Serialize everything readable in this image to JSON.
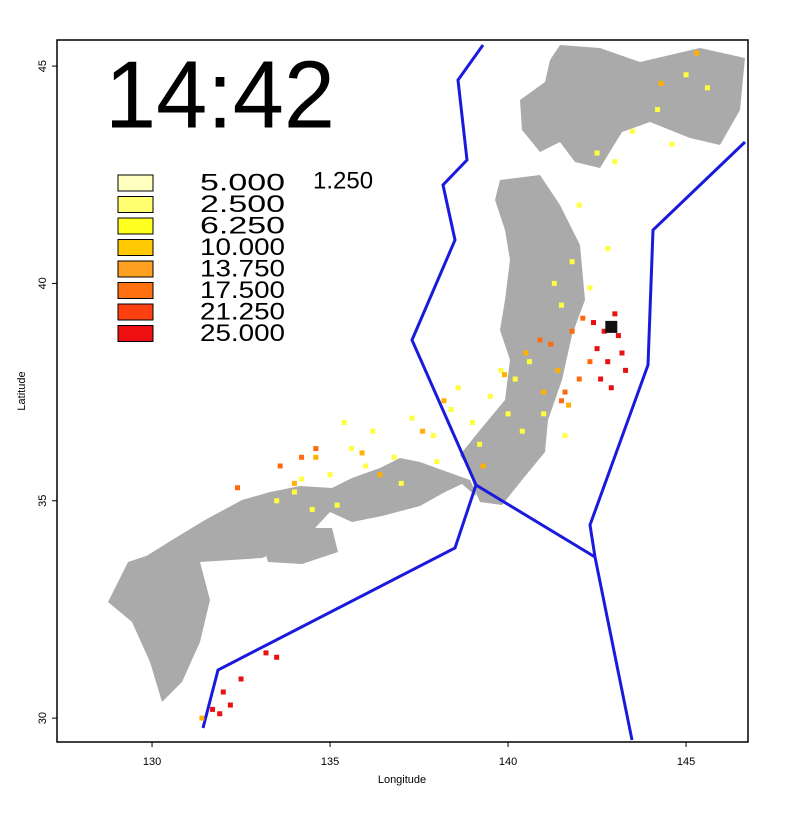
{
  "chart_data": {
    "type": "scatter",
    "title": "14:42",
    "xlabel": "Longitude",
    "ylabel": "Latitude",
    "xlim": [
      127.33,
      146.74
    ],
    "ylim": [
      29.45,
      45.6
    ],
    "xticks": [
      130,
      135,
      140,
      145
    ],
    "yticks": [
      30,
      35,
      40,
      45
    ],
    "legend_note": "1.250",
    "legend": [
      {
        "label": "5.000",
        "color": "#ffffc0"
      },
      {
        "label": "2.500",
        "color": "#ffff70"
      },
      {
        "label": "6.250",
        "color": "#ffff20"
      },
      {
        "label": "10.000",
        "color": "#ffc800"
      },
      {
        "label": "13.750",
        "color": "#ffa020"
      },
      {
        "label": "17.500",
        "color": "#ff7010"
      },
      {
        "label": "21.250",
        "color": "#ff4010"
      },
      {
        "label": "25.000",
        "color": "#ee1010"
      }
    ],
    "series": [
      {
        "color": "#ffff40",
        "x": [
          134.0,
          134.5,
          135.0,
          135.6,
          136.2,
          136.8,
          137.3,
          137.9,
          138.4,
          139.0,
          139.5,
          140.0,
          140.4,
          133.5,
          134.2,
          135.2,
          136.0,
          137.0,
          138.0,
          139.2,
          140.2,
          141.0,
          141.5,
          141.8,
          142.0,
          141.3,
          142.5,
          143.5,
          144.2,
          145.0,
          145.6,
          143.0,
          144.6,
          142.3,
          142.8,
          141.6,
          140.6,
          139.8,
          138.6,
          135.4
        ],
        "values": [
          35.2,
          34.8,
          35.6,
          36.2,
          36.6,
          36.0,
          36.9,
          36.5,
          37.1,
          36.8,
          37.4,
          37.0,
          36.6,
          35.0,
          35.5,
          34.9,
          35.8,
          35.4,
          35.9,
          36.3,
          37.8,
          37.0,
          39.5,
          40.5,
          41.8,
          40.0,
          43.0,
          43.5,
          44.0,
          44.8,
          44.5,
          42.8,
          43.2,
          39.9,
          40.8,
          36.5,
          38.2,
          38.0,
          37.6,
          36.8
        ]
      },
      {
        "color": "#ffb000",
        "x": [
          135.9,
          136.4,
          137.6,
          138.2,
          139.3,
          139.9,
          140.5,
          141.0,
          141.4,
          141.7,
          144.3,
          145.3,
          134.0,
          134.6,
          131.4
        ],
        "values": [
          36.1,
          35.6,
          36.6,
          37.3,
          35.8,
          37.9,
          38.4,
          37.5,
          38.0,
          37.2,
          44.6,
          45.3,
          35.4,
          36.0,
          30.0
        ]
      },
      {
        "color": "#ff6a10",
        "x": [
          141.2,
          141.6,
          142.0,
          141.8,
          142.3,
          141.5,
          134.2,
          134.6,
          133.6,
          132.4,
          140.9,
          142.1
        ],
        "values": [
          38.6,
          37.5,
          37.8,
          38.9,
          38.2,
          37.3,
          36.0,
          36.2,
          35.8,
          35.3,
          38.7,
          39.2
        ]
      },
      {
        "color": "#e81010",
        "x": [
          142.5,
          142.8,
          143.1,
          143.3,
          142.6,
          142.9,
          143.0,
          142.4,
          142.7,
          143.2,
          131.9,
          132.2,
          132.5,
          133.2,
          133.5,
          131.7,
          132.0
        ],
        "values": [
          38.5,
          38.2,
          38.8,
          38.0,
          37.8,
          37.6,
          39.3,
          39.1,
          38.9,
          38.4,
          30.1,
          30.3,
          30.9,
          31.5,
          31.4,
          30.2,
          30.6
        ]
      }
    ],
    "epicenter": {
      "x": 142.9,
      "y": 39.0
    }
  }
}
